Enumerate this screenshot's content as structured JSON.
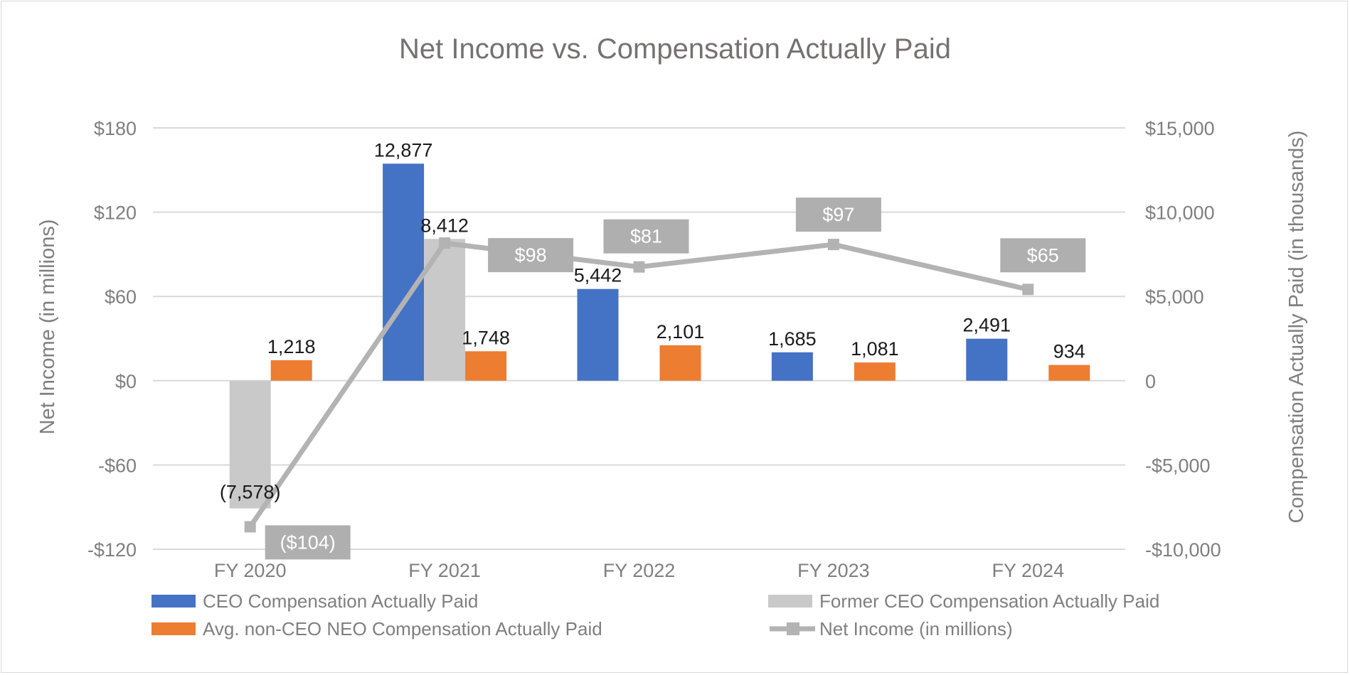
{
  "chart_data": {
    "type": "bar",
    "title": "Net Income vs. Compensation Actually Paid",
    "categories": [
      "FY 2020",
      "FY 2021",
      "FY 2022",
      "FY 2023",
      "FY 2024"
    ],
    "y_left": {
      "label": "Net Income (in millions)",
      "lim": [
        -120,
        180
      ],
      "ticks": [
        180,
        120,
        60,
        0,
        -60,
        -120
      ],
      "tick_labels": [
        "$180",
        "$120",
        "$60",
        "$0",
        "-$60",
        "-$120"
      ]
    },
    "y_right": {
      "label": "Compensation Actually Paid (in thousands)",
      "lim": [
        -10000,
        15000
      ],
      "ticks": [
        15000,
        10000,
        5000,
        0,
        -5000,
        -10000
      ],
      "tick_labels": [
        "$15,000",
        "$10,000",
        "$5,000",
        "0",
        "-$5,000",
        "-$10,000"
      ]
    },
    "series": [
      {
        "name": "CEO Compensation Actually Paid",
        "kind": "bar",
        "axis": "right",
        "color": "#4472c4",
        "values": [
          null,
          12877,
          5442,
          1685,
          2491
        ],
        "labels": [
          "",
          "12,877",
          "5,442",
          "1,685",
          "2,491"
        ]
      },
      {
        "name": "Former CEO Compensation Actually Paid",
        "kind": "bar",
        "axis": "right",
        "color": "#c9c9c9",
        "values": [
          -7578,
          8412,
          null,
          null,
          null
        ],
        "labels": [
          "(7,578)",
          "8,412",
          "",
          "",
          ""
        ]
      },
      {
        "name": "Avg. non-CEO NEO Compensation Actually Paid",
        "kind": "bar",
        "axis": "right",
        "color": "#ed7d31",
        "values": [
          1218,
          1748,
          2101,
          1081,
          934
        ],
        "labels": [
          "1,218",
          "1,748",
          "2,101",
          "1,081",
          "934"
        ]
      },
      {
        "name": "Net Income (in millions)",
        "kind": "line",
        "axis": "left",
        "color": "#b3b3b3",
        "values": [
          -104,
          98,
          81,
          97,
          65
        ],
        "labels": [
          "($104)",
          "$98",
          "$81",
          "$97",
          "$65"
        ]
      }
    ],
    "legend": {
      "position": "bottom",
      "items": [
        "CEO Compensation Actually Paid",
        "Former CEO Compensation Actually Paid",
        "Avg. non-CEO NEO Compensation Actually Paid",
        "Net Income (in millions)"
      ]
    },
    "grid": true
  }
}
